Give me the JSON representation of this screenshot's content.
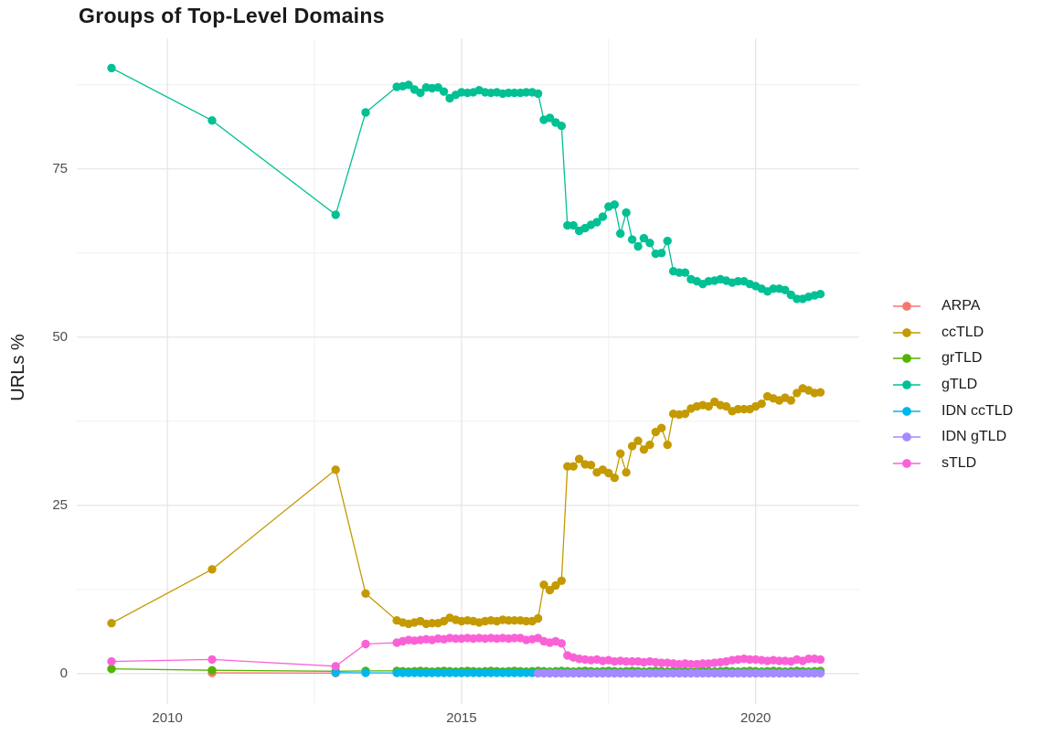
{
  "chart_data": {
    "type": "line",
    "title": "Groups of Top-Level Domains",
    "xlabel": "",
    "ylabel": "URLs %",
    "legend_position": "right",
    "grid": true,
    "background": "#ffffff",
    "major_grid_color": "#e4e4e4",
    "minor_grid_color": "#f0f0f0",
    "x_domain": [
      2008.46,
      2021.76
    ],
    "y_domain": [
      -4.5,
      94.4
    ],
    "x_ticks": [
      {
        "value": 2010,
        "label": "2010"
      },
      {
        "value": 2015,
        "label": "2015"
      },
      {
        "value": 2020,
        "label": "2020"
      }
    ],
    "x_minor_ticks": [
      2012.5,
      2017.5
    ],
    "y_ticks": [
      {
        "value": 0,
        "label": "0"
      },
      {
        "value": 25,
        "label": "25"
      },
      {
        "value": 50,
        "label": "50"
      },
      {
        "value": 75,
        "label": "75"
      }
    ],
    "y_minor_ticks": [
      12.5,
      37.5,
      62.5,
      87.5
    ],
    "series": [
      {
        "name": "ARPA",
        "color": "#F8766D",
        "sparse": [
          [
            2010.76,
            0.12
          ],
          [
            2012.86,
            0.08
          ]
        ],
        "dense": null
      },
      {
        "name": "ccTLD",
        "color": "#C49A00",
        "sparse": [
          [
            2009.05,
            7.5
          ],
          [
            2010.76,
            15.5
          ],
          [
            2012.86,
            30.3
          ],
          [
            2013.37,
            11.9
          ]
        ],
        "dense": {
          "x0": 2013.9,
          "dx": 0.1,
          "y": [
            7.9,
            7.6,
            7.4,
            7.6,
            7.8,
            7.4,
            7.5,
            7.5,
            7.8,
            8.3,
            8.0,
            7.8,
            7.9,
            7.8,
            7.6,
            7.8,
            7.9,
            7.8,
            8.0,
            7.9,
            7.9,
            7.9,
            7.8,
            7.8,
            8.2,
            13.2,
            12.4,
            13.1,
            13.8,
            30.8,
            30.8,
            31.9,
            31.1,
            31.0,
            29.9,
            30.3,
            29.8,
            29.1,
            32.7,
            29.9,
            33.8,
            34.6,
            33.3,
            34.0,
            35.9,
            36.5,
            34.0,
            38.6,
            38.5,
            38.6,
            39.4,
            39.7,
            39.9,
            39.7,
            40.4,
            39.9,
            39.7,
            39.0,
            39.3,
            39.3,
            39.3,
            39.7,
            40.1,
            41.2,
            40.9,
            40.6,
            41.0,
            40.6,
            41.7,
            42.4,
            42.1,
            41.7,
            41.8
          ]
        }
      },
      {
        "name": "grTLD",
        "color": "#53B400",
        "sparse": [
          [
            2009.05,
            0.7
          ],
          [
            2010.76,
            0.5
          ],
          [
            2012.86,
            0.35
          ],
          [
            2013.37,
            0.4
          ]
        ],
        "dense": {
          "x0": 2013.9,
          "dx": 0.1,
          "y": [
            0.4,
            0.35,
            0.3,
            0.35,
            0.4,
            0.35,
            0.3,
            0.35,
            0.4,
            0.35,
            0.3,
            0.35,
            0.4,
            0.35,
            0.3,
            0.35,
            0.4,
            0.35,
            0.3,
            0.35,
            0.4,
            0.35,
            0.3,
            0.35,
            0.4,
            0.35,
            0.3,
            0.35,
            0.4,
            0.35,
            0.3,
            0.35,
            0.4,
            0.35,
            0.3,
            0.35,
            0.4,
            0.35,
            0.3,
            0.35,
            0.4,
            0.35,
            0.3,
            0.35,
            0.4,
            0.35,
            0.3,
            0.35,
            0.4,
            0.35,
            0.3,
            0.35,
            0.4,
            0.35,
            0.3,
            0.35,
            0.4,
            0.35,
            0.3,
            0.35,
            0.4,
            0.35,
            0.3,
            0.35,
            0.4,
            0.35,
            0.3,
            0.35,
            0.4,
            0.35,
            0.3,
            0.35,
            0.4
          ]
        }
      },
      {
        "name": "gTLD",
        "color": "#00C094",
        "sparse": [
          [
            2009.05,
            90.0
          ],
          [
            2010.76,
            82.2
          ],
          [
            2012.86,
            68.2
          ],
          [
            2013.37,
            83.4
          ]
        ],
        "dense": {
          "x0": 2013.9,
          "dx": 0.1,
          "y": [
            87.2,
            87.3,
            87.5,
            86.8,
            86.3,
            87.1,
            87.0,
            87.1,
            86.5,
            85.5,
            86.0,
            86.4,
            86.3,
            86.4,
            86.7,
            86.4,
            86.3,
            86.4,
            86.2,
            86.3,
            86.3,
            86.3,
            86.4,
            86.4,
            86.2,
            82.3,
            82.6,
            81.9,
            81.4,
            66.6,
            66.6,
            65.8,
            66.2,
            66.7,
            67.1,
            67.9,
            69.4,
            69.7,
            65.4,
            68.5,
            64.5,
            63.5,
            64.7,
            64.0,
            62.4,
            62.5,
            64.3,
            59.8,
            59.6,
            59.6,
            58.6,
            58.3,
            57.9,
            58.3,
            58.4,
            58.6,
            58.4,
            58.1,
            58.3,
            58.3,
            57.9,
            57.6,
            57.2,
            56.8,
            57.2,
            57.2,
            57.0,
            56.3,
            55.7,
            55.7,
            56.0,
            56.2,
            56.4
          ]
        }
      },
      {
        "name": "IDN ccTLD",
        "color": "#00B6EB",
        "sparse": [
          [
            2012.86,
            0.15
          ],
          [
            2013.37,
            0.12
          ]
        ],
        "dense": {
          "x0": 2013.9,
          "dx": 0.1,
          "y": [
            0.1,
            0.1,
            0.1,
            0.1,
            0.1,
            0.1,
            0.1,
            0.1,
            0.1,
            0.1,
            0.1,
            0.1,
            0.1,
            0.1,
            0.1,
            0.1,
            0.1,
            0.1,
            0.1,
            0.1,
            0.1,
            0.1,
            0.1,
            0.1,
            0.1,
            0.1,
            0.1,
            0.1,
            0.1,
            0.1,
            0.1,
            0.1,
            0.1,
            0.1,
            0.1,
            0.1,
            0.1,
            0.1,
            0.1,
            0.1,
            0.1,
            0.1,
            0.1,
            0.1,
            0.1,
            0.1,
            0.1,
            0.1,
            0.1,
            0.1,
            0.1,
            0.1,
            0.1,
            0.1,
            0.1,
            0.1,
            0.1,
            0.1,
            0.1,
            0.1,
            0.1,
            0.1,
            0.1,
            0.1,
            0.1,
            0.1,
            0.1,
            0.1,
            0.1,
            0.1,
            0.1,
            0.1,
            0.1
          ]
        }
      },
      {
        "name": "IDN gTLD",
        "color": "#A58AFF",
        "sparse": [],
        "dense": {
          "x0": 2016.3,
          "dx": 0.1,
          "y": [
            0.05,
            0.05,
            0.05,
            0.05,
            0.05,
            0.05,
            0.05,
            0.05,
            0.05,
            0.05,
            0.05,
            0.05,
            0.05,
            0.05,
            0.05,
            0.05,
            0.05,
            0.05,
            0.05,
            0.05,
            0.05,
            0.05,
            0.05,
            0.05,
            0.05,
            0.05,
            0.05,
            0.05,
            0.05,
            0.05,
            0.05,
            0.05,
            0.05,
            0.05,
            0.05,
            0.05,
            0.05,
            0.05,
            0.05,
            0.05,
            0.05,
            0.05,
            0.05,
            0.05,
            0.05,
            0.05,
            0.05,
            0.05,
            0.05
          ]
        }
      },
      {
        "name": "sTLD",
        "color": "#FB61D7",
        "sparse": [
          [
            2009.05,
            1.8
          ],
          [
            2010.76,
            2.1
          ],
          [
            2012.86,
            1.1
          ],
          [
            2013.37,
            4.4
          ]
        ],
        "dense": {
          "x0": 2013.9,
          "dx": 0.1,
          "y": [
            4.6,
            4.8,
            5.0,
            4.9,
            5.0,
            5.1,
            5.0,
            5.2,
            5.1,
            5.3,
            5.2,
            5.2,
            5.3,
            5.2,
            5.3,
            5.2,
            5.3,
            5.2,
            5.3,
            5.2,
            5.3,
            5.3,
            5.0,
            5.1,
            5.3,
            4.8,
            4.6,
            4.8,
            4.5,
            2.7,
            2.4,
            2.2,
            2.1,
            2.0,
            2.1,
            1.9,
            2.0,
            1.8,
            1.9,
            1.8,
            1.8,
            1.8,
            1.7,
            1.8,
            1.7,
            1.6,
            1.6,
            1.5,
            1.4,
            1.5,
            1.4,
            1.4,
            1.5,
            1.5,
            1.6,
            1.7,
            1.8,
            2.0,
            2.1,
            2.2,
            2.1,
            2.1,
            2.0,
            1.9,
            2.0,
            1.9,
            1.9,
            1.8,
            2.1,
            1.9,
            2.2,
            2.2,
            2.1
          ]
        }
      }
    ]
  }
}
